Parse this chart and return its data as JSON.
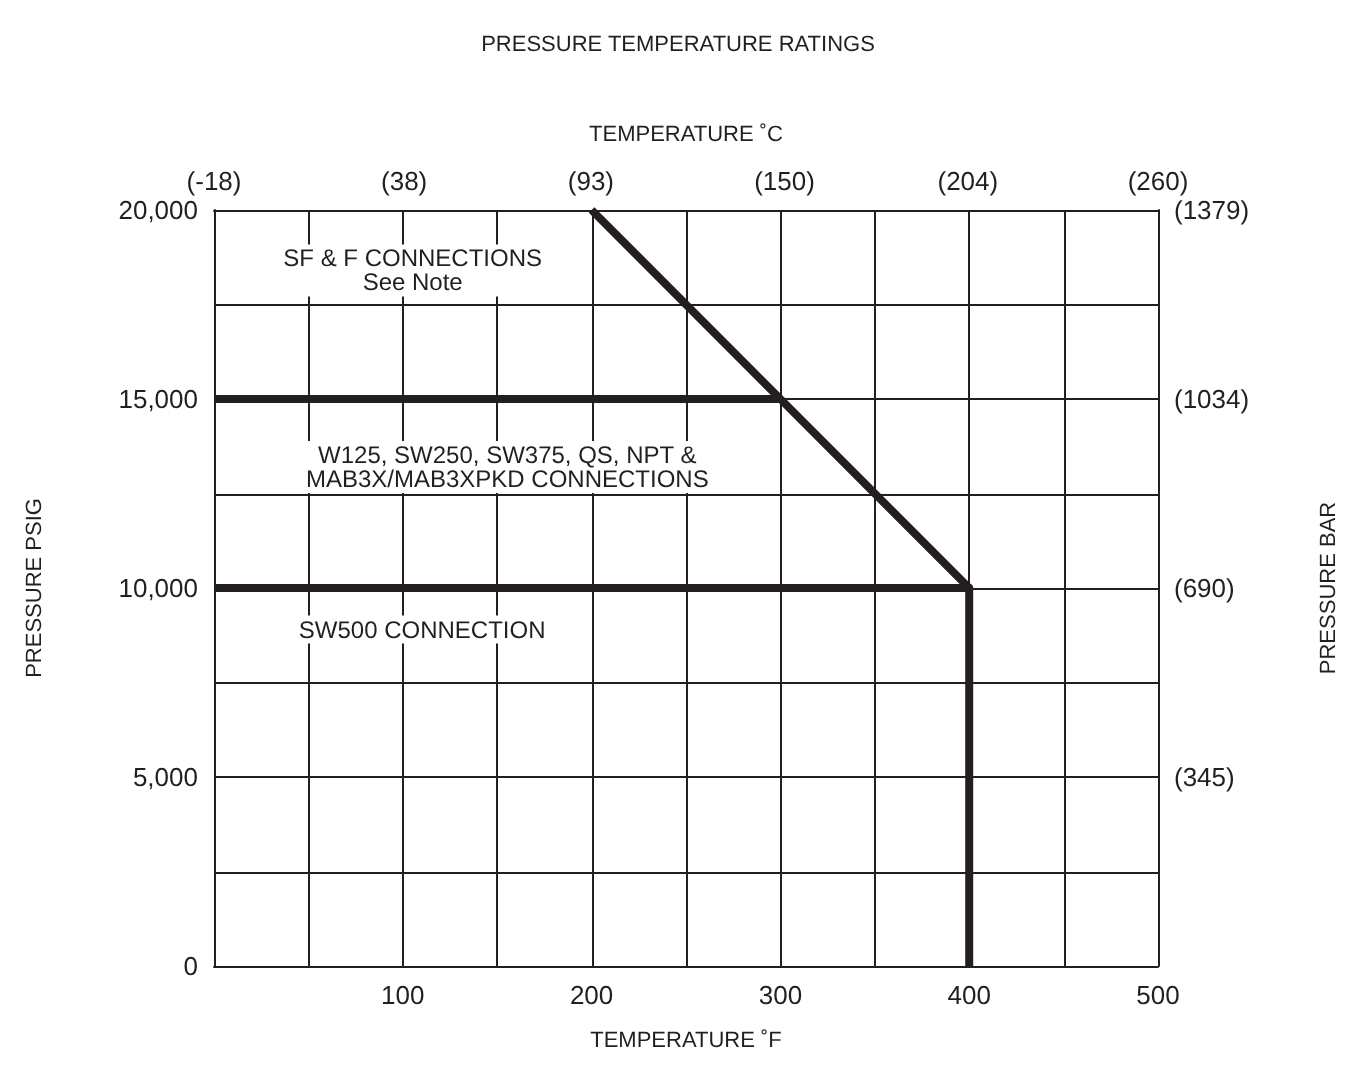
{
  "chart_data": {
    "type": "line",
    "title": "PRESSURE TEMPERATURE RATINGS",
    "xlabel": "TEMPERATURE ˚F",
    "x2label": "TEMPERATURE ˚C",
    "ylabel": "PRESSURE PSIG",
    "y2label": "PRESSURE BAR",
    "xlim": [
      0,
      500
    ],
    "xticks": [
      {
        "value": 0,
        "label": null
      },
      {
        "value": 50,
        "label": null
      },
      100,
      {
        "value": 150,
        "label": null
      },
      200,
      {
        "value": 250,
        "label": null
      },
      300,
      {
        "value": 350,
        "label": null
      },
      400,
      {
        "value": 450,
        "label": null
      },
      500
    ],
    "ylim": [
      0,
      20000
    ],
    "yticks": [
      {
        "value": 0,
        "label": "0"
      },
      {
        "value": 2500,
        "label": null
      },
      {
        "value": 5000,
        "label": "5,000"
      },
      {
        "value": 7500,
        "label": null
      },
      {
        "value": 10000,
        "label": "10,000"
      },
      {
        "value": 12500,
        "label": null
      },
      {
        "value": 15000,
        "label": "15,000"
      },
      {
        "value": 17500,
        "label": null
      },
      {
        "value": 20000,
        "label": "20,000"
      }
    ],
    "x2lim": [
      -18,
      260
    ],
    "x2ticks": [
      {
        "value": -18,
        "label": "(-18)"
      },
      {
        "value": 38,
        "label": "(38)"
      },
      {
        "value": 93,
        "label": "(93)"
      },
      {
        "value": 150,
        "label": "(150)"
      },
      {
        "value": 204,
        "label": "(204)"
      },
      {
        "value": 260,
        "label": "(260)"
      }
    ],
    "y2lim": [
      0,
      1379
    ],
    "y2ticks": [
      {
        "value": 345,
        "label": "(345)"
      },
      {
        "value": 690,
        "label": "(690)"
      },
      {
        "value": 1034,
        "label": "(1034)"
      },
      {
        "value": 1379,
        "label": "(1379)"
      }
    ],
    "grid": true,
    "marker": "none",
    "line_style": "solid",
    "series": [
      {
        "color": "#231f20",
        "x": [
          0,
          300
        ],
        "values": [
          15000,
          15000
        ]
      },
      {
        "color": "#231f20",
        "x": [
          0,
          400,
          400
        ],
        "values": [
          10000,
          10000,
          0
        ]
      },
      {
        "color": "#231f20",
        "x": [
          200,
          300,
          400
        ],
        "values": [
          20000,
          15000,
          10000
        ]
      }
    ],
    "annotations": [
      "SF & F CONNECTIONS\nSee Note",
      "W125, SW250, SW375, QS, NPT &\nMAB3X/MAB3XPKD CONNECTIONS",
      "SW500 CONNECTION"
    ]
  }
}
